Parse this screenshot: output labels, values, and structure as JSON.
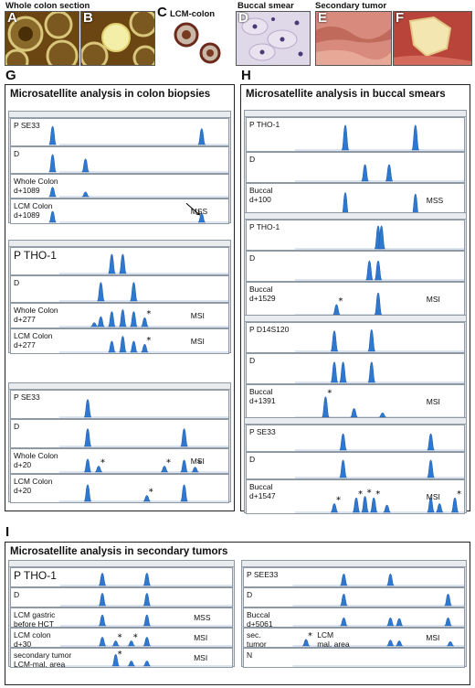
{
  "top": {
    "captions": {
      "whole": "Whole colon section",
      "lcm": "LCM-colon",
      "buccal": "Buccal smear",
      "secondary": "Secondary tumor"
    },
    "panel_letters": [
      "A",
      "B",
      "C",
      "D",
      "E",
      "F"
    ]
  },
  "panels": {
    "G": {
      "letter": "G",
      "title": "Microsatellite analysis in colon biopsies",
      "groups": [
        {
          "rows": [
            {
              "label": "P   SE33",
              "peaks": [
                [
                  0.19,
                  0.8
                ],
                [
                  0.87,
                  0.7
                ]
              ]
            },
            {
              "label": "D",
              "peaks": [
                [
                  0.19,
                  0.8
                ],
                [
                  0.34,
                  0.6
                ]
              ]
            },
            {
              "label": "Whole Colon\nd+1089",
              "peaks": [
                [
                  0.19,
                  0.5
                ],
                [
                  0.34,
                  0.25
                ]
              ]
            },
            {
              "label": "LCM Colon\nd+1089",
              "status": "MSS",
              "peaks": [
                [
                  0.19,
                  0.55
                ],
                [
                  0.87,
                  0.45
                ]
              ],
              "arrow": true
            }
          ]
        },
        {
          "rows": [
            {
              "label": "P    THO-1",
              "peaks": [
                [
                  0.46,
                  0.85
                ],
                [
                  0.51,
                  0.85
                ]
              ]
            },
            {
              "label": "D",
              "peaks": [
                [
                  0.41,
                  0.85
                ],
                [
                  0.56,
                  0.85
                ]
              ]
            },
            {
              "label": "Whole Colon\nd+277",
              "status": "MSI",
              "peaks": [
                [
                  0.41,
                  0.5
                ],
                [
                  0.46,
                  0.75
                ],
                [
                  0.51,
                  0.85
                ],
                [
                  0.56,
                  0.75
                ],
                [
                  0.61,
                  0.45
                ],
                [
                  0.38,
                  0.2
                ]
              ],
              "stars": [
                0.61
              ]
            },
            {
              "label": "LCM Colon\nd+277",
              "status": "MSI",
              "peaks": [
                [
                  0.46,
                  0.55
                ],
                [
                  0.51,
                  0.8
                ],
                [
                  0.56,
                  0.55
                ],
                [
                  0.61,
                  0.4
                ]
              ],
              "stars": [
                0.61
              ]
            }
          ]
        },
        {
          "rows": [
            {
              "label": "P   SE33",
              "peaks": [
                [
                  0.35,
                  0.75
                ]
              ]
            },
            {
              "label": "D",
              "peaks": [
                [
                  0.35,
                  0.75
                ],
                [
                  0.79,
                  0.75
                ]
              ]
            },
            {
              "label": "Whole Colon\nd+20",
              "status": "MSI",
              "peaks": [
                [
                  0.35,
                  0.65
                ],
                [
                  0.4,
                  0.3
                ],
                [
                  0.7,
                  0.3
                ],
                [
                  0.79,
                  0.6
                ],
                [
                  0.84,
                  0.25
                ]
              ],
              "stars": [
                0.4,
                0.7,
                0.84
              ]
            },
            {
              "label": "LCM Colon\nd+20",
              "peaks": [
                [
                  0.35,
                  0.7
                ],
                [
                  0.62,
                  0.25
                ],
                [
                  0.79,
                  0.7
                ]
              ],
              "stars": [
                0.62
              ]
            }
          ]
        }
      ]
    },
    "H": {
      "letter": "H",
      "title": "Microsatellite analysis in buccal smears",
      "groups": [
        {
          "rows": [
            {
              "label": "P THO-1",
              "peaks": [
                [
                  0.45,
                  0.85
                ],
                [
                  0.77,
                  0.85
                ]
              ]
            },
            {
              "label": "D",
              "peaks": [
                [
                  0.54,
                  0.65
                ],
                [
                  0.65,
                  0.65
                ]
              ]
            },
            {
              "label": "Buccal\nd+100",
              "status": "MSS",
              "peaks": [
                [
                  0.45,
                  0.8
                ],
                [
                  0.77,
                  0.75
                ]
              ]
            }
          ]
        },
        {
          "rows": [
            {
              "label": "P THO-1",
              "peaks": [
                [
                  0.6,
                  0.9
                ],
                [
                  0.615,
                  0.9
                ]
              ]
            },
            {
              "label": "D",
              "peaks": [
                [
                  0.56,
                  0.75
                ],
                [
                  0.6,
                  0.75
                ]
              ]
            },
            {
              "label": "Buccal\nd+1529",
              "status": "MSI",
              "peaks": [
                [
                  0.41,
                  0.35
                ],
                [
                  0.6,
                  0.75
                ]
              ],
              "stars": [
                0.41
              ]
            }
          ]
        },
        {
          "rows": [
            {
              "label": "P D14S120",
              "peaks": [
                [
                  0.4,
                  0.8
                ],
                [
                  0.57,
                  0.85
                ]
              ]
            },
            {
              "label": "D",
              "peaks": [
                [
                  0.4,
                  0.8
                ],
                [
                  0.44,
                  0.8
                ],
                [
                  0.57,
                  0.8
                ]
              ]
            },
            {
              "label": "Buccal\nd+1391",
              "status": "MSI",
              "peaks": [
                [
                  0.36,
                  0.7
                ],
                [
                  0.49,
                  0.3
                ],
                [
                  0.62,
                  0.15
                ]
              ],
              "stars": [
                0.36
              ]
            }
          ]
        },
        {
          "rows": [
            {
              "label": "P   SE33",
              "peaks": [
                [
                  0.44,
                  0.75
                ],
                [
                  0.84,
                  0.75
                ]
              ]
            },
            {
              "label": "D",
              "peaks": [
                [
                  0.44,
                  0.8
                ],
                [
                  0.84,
                  0.8
                ]
              ]
            },
            {
              "label": "Buccal\nd+1547",
              "status": "MSI",
              "peaks": [
                [
                  0.4,
                  0.3
                ],
                [
                  0.5,
                  0.5
                ],
                [
                  0.54,
                  0.55
                ],
                [
                  0.58,
                  0.5
                ],
                [
                  0.64,
                  0.25
                ],
                [
                  0.84,
                  0.5
                ],
                [
                  0.88,
                  0.3
                ],
                [
                  0.95,
                  0.5
                ]
              ],
              "stars": [
                0.4,
                0.5,
                0.54,
                0.58,
                0.95
              ]
            }
          ]
        }
      ]
    },
    "I": {
      "letter": "I",
      "title": "Microsatellite analysis in secondary tumors",
      "groups": [
        {
          "rows": [
            {
              "label": "P    THO-1",
              "peaks": [
                [
                  0.41,
                  0.85
                ],
                [
                  0.61,
                  0.85
                ]
              ]
            },
            {
              "label": "D",
              "peaks": [
                [
                  0.41,
                  0.85
                ],
                [
                  0.61,
                  0.85
                ]
              ]
            },
            {
              "label": "LCM gastric\nbefore HCT",
              "status": "MSS",
              "peaks": [
                [
                  0.41,
                  0.75
                ],
                [
                  0.61,
                  0.75
                ]
              ]
            },
            {
              "label": "LCM colon\nd+30",
              "status": "MSI",
              "peaks": [
                [
                  0.41,
                  0.6
                ],
                [
                  0.47,
                  0.35
                ],
                [
                  0.54,
                  0.35
                ],
                [
                  0.61,
                  0.6
                ]
              ],
              "stars": [
                0.47,
                0.54
              ]
            },
            {
              "label": "secondary tumor\nLCM-mal. area",
              "status": "MSI",
              "peaks": [
                [
                  0.47,
                  0.8
                ],
                [
                  0.54,
                  0.35
                ],
                [
                  0.61,
                  0.35
                ]
              ],
              "stars": [
                0.47
              ]
            }
          ]
        },
        {
          "rows": [
            {
              "label": "P SEE33",
              "peaks": [
                [
                  0.45,
                  0.8
                ],
                [
                  0.66,
                  0.8
                ]
              ]
            },
            {
              "label": "D",
              "peaks": [
                [
                  0.45,
                  0.8
                ],
                [
                  0.92,
                  0.8
                ]
              ]
            },
            {
              "label": "Buccal\nd+5061",
              "peaks": [
                [
                  0.45,
                  0.55
                ],
                [
                  0.66,
                  0.55
                ],
                [
                  0.7,
                  0.5
                ],
                [
                  0.92,
                  0.55
                ]
              ]
            },
            {
              "label": "sec.\ntumor",
              "label2": "LCM\nmal. area",
              "status": "MSI",
              "peaks": [
                [
                  0.28,
                  0.45
                ],
                [
                  0.66,
                  0.4
                ],
                [
                  0.7,
                  0.35
                ],
                [
                  0.93,
                  0.3
                ]
              ],
              "stars": [
                0.28
              ]
            },
            {
              "label": "N",
              "peaks": []
            }
          ]
        }
      ]
    }
  },
  "colors": {
    "peak": "#2e78d0",
    "peak_dark": "#1c5aa8",
    "star": "#000000",
    "frame": "#222222",
    "group_bg": "#dfe3e8"
  }
}
